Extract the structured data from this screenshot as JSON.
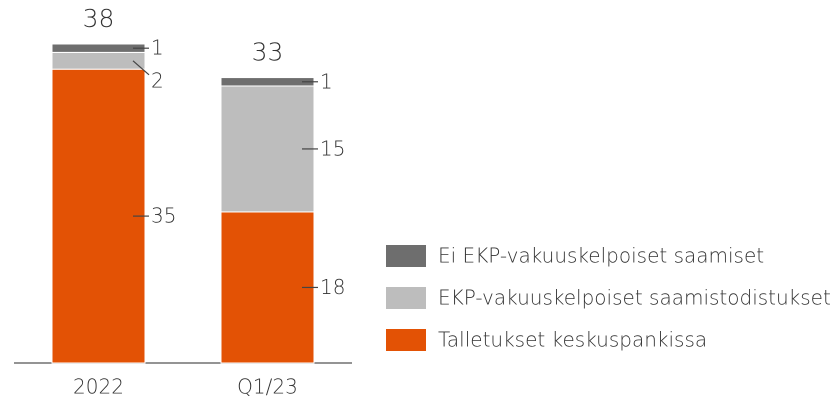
{
  "chart_data": {
    "type": "stacked_bar",
    "categories": [
      "2022",
      "Q1/23"
    ],
    "totals": [
      38,
      33
    ],
    "series": [
      {
        "name": "Talletukset keskuspankissa",
        "color": "#e35205",
        "values": [
          35,
          18
        ]
      },
      {
        "name": "EKP-vakuuskelpoiset saamistodistukset",
        "color": "#bdbdbd",
        "values": [
          2,
          15
        ]
      },
      {
        "name": "Ei EKP-vakuuskelpoiset saamiset",
        "color": "#6e6e6e",
        "values": [
          1,
          1
        ]
      }
    ]
  }
}
